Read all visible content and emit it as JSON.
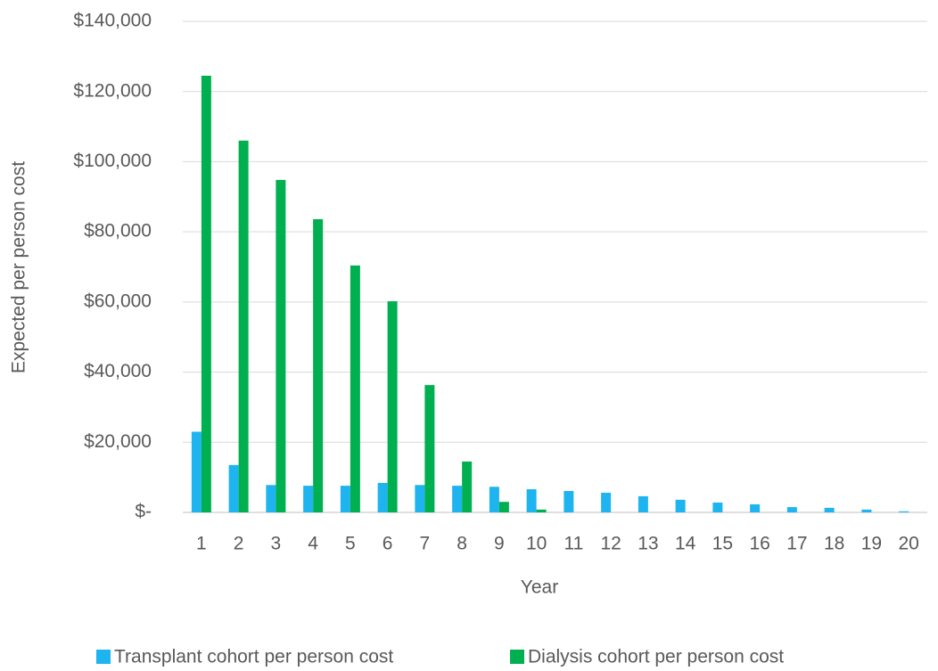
{
  "chart_data": {
    "type": "bar",
    "x_label": "Year",
    "y_label": "Expected per person cost",
    "categories": [
      "1",
      "2",
      "3",
      "4",
      "5",
      "6",
      "7",
      "8",
      "9",
      "10",
      "11",
      "12",
      "13",
      "14",
      "15",
      "16",
      "17",
      "18",
      "19",
      "20"
    ],
    "series": [
      {
        "name": "Transplant cohort per person cost",
        "color": "#1eb4f0",
        "values": [
          23000,
          13500,
          7800,
          7600,
          7600,
          8400,
          7800,
          7600,
          7300,
          6600,
          6100,
          5600,
          4600,
          3600,
          2800,
          2300,
          1500,
          1300,
          800,
          300
        ]
      },
      {
        "name": "Dialysis cohort per person cost",
        "color": "#00b050",
        "values": [
          124500,
          106000,
          94800,
          83600,
          70400,
          60200,
          36300,
          14500,
          3000,
          800,
          0,
          0,
          0,
          0,
          0,
          0,
          0,
          0,
          0,
          0
        ]
      }
    ],
    "ylim": [
      0,
      140000
    ],
    "yticks": [
      {
        "value": 0,
        "label": "$-"
      },
      {
        "value": 20000,
        "label": "$20,000"
      },
      {
        "value": 40000,
        "label": "$40,000"
      },
      {
        "value": 60000,
        "label": "$60,000"
      },
      {
        "value": 80000,
        "label": "$80,000"
      },
      {
        "value": 100000,
        "label": "$100,000"
      },
      {
        "value": 120000,
        "label": "$120,000"
      },
      {
        "value": 140000,
        "label": "$140,000"
      }
    ],
    "grid": true,
    "legend": "bottom"
  }
}
